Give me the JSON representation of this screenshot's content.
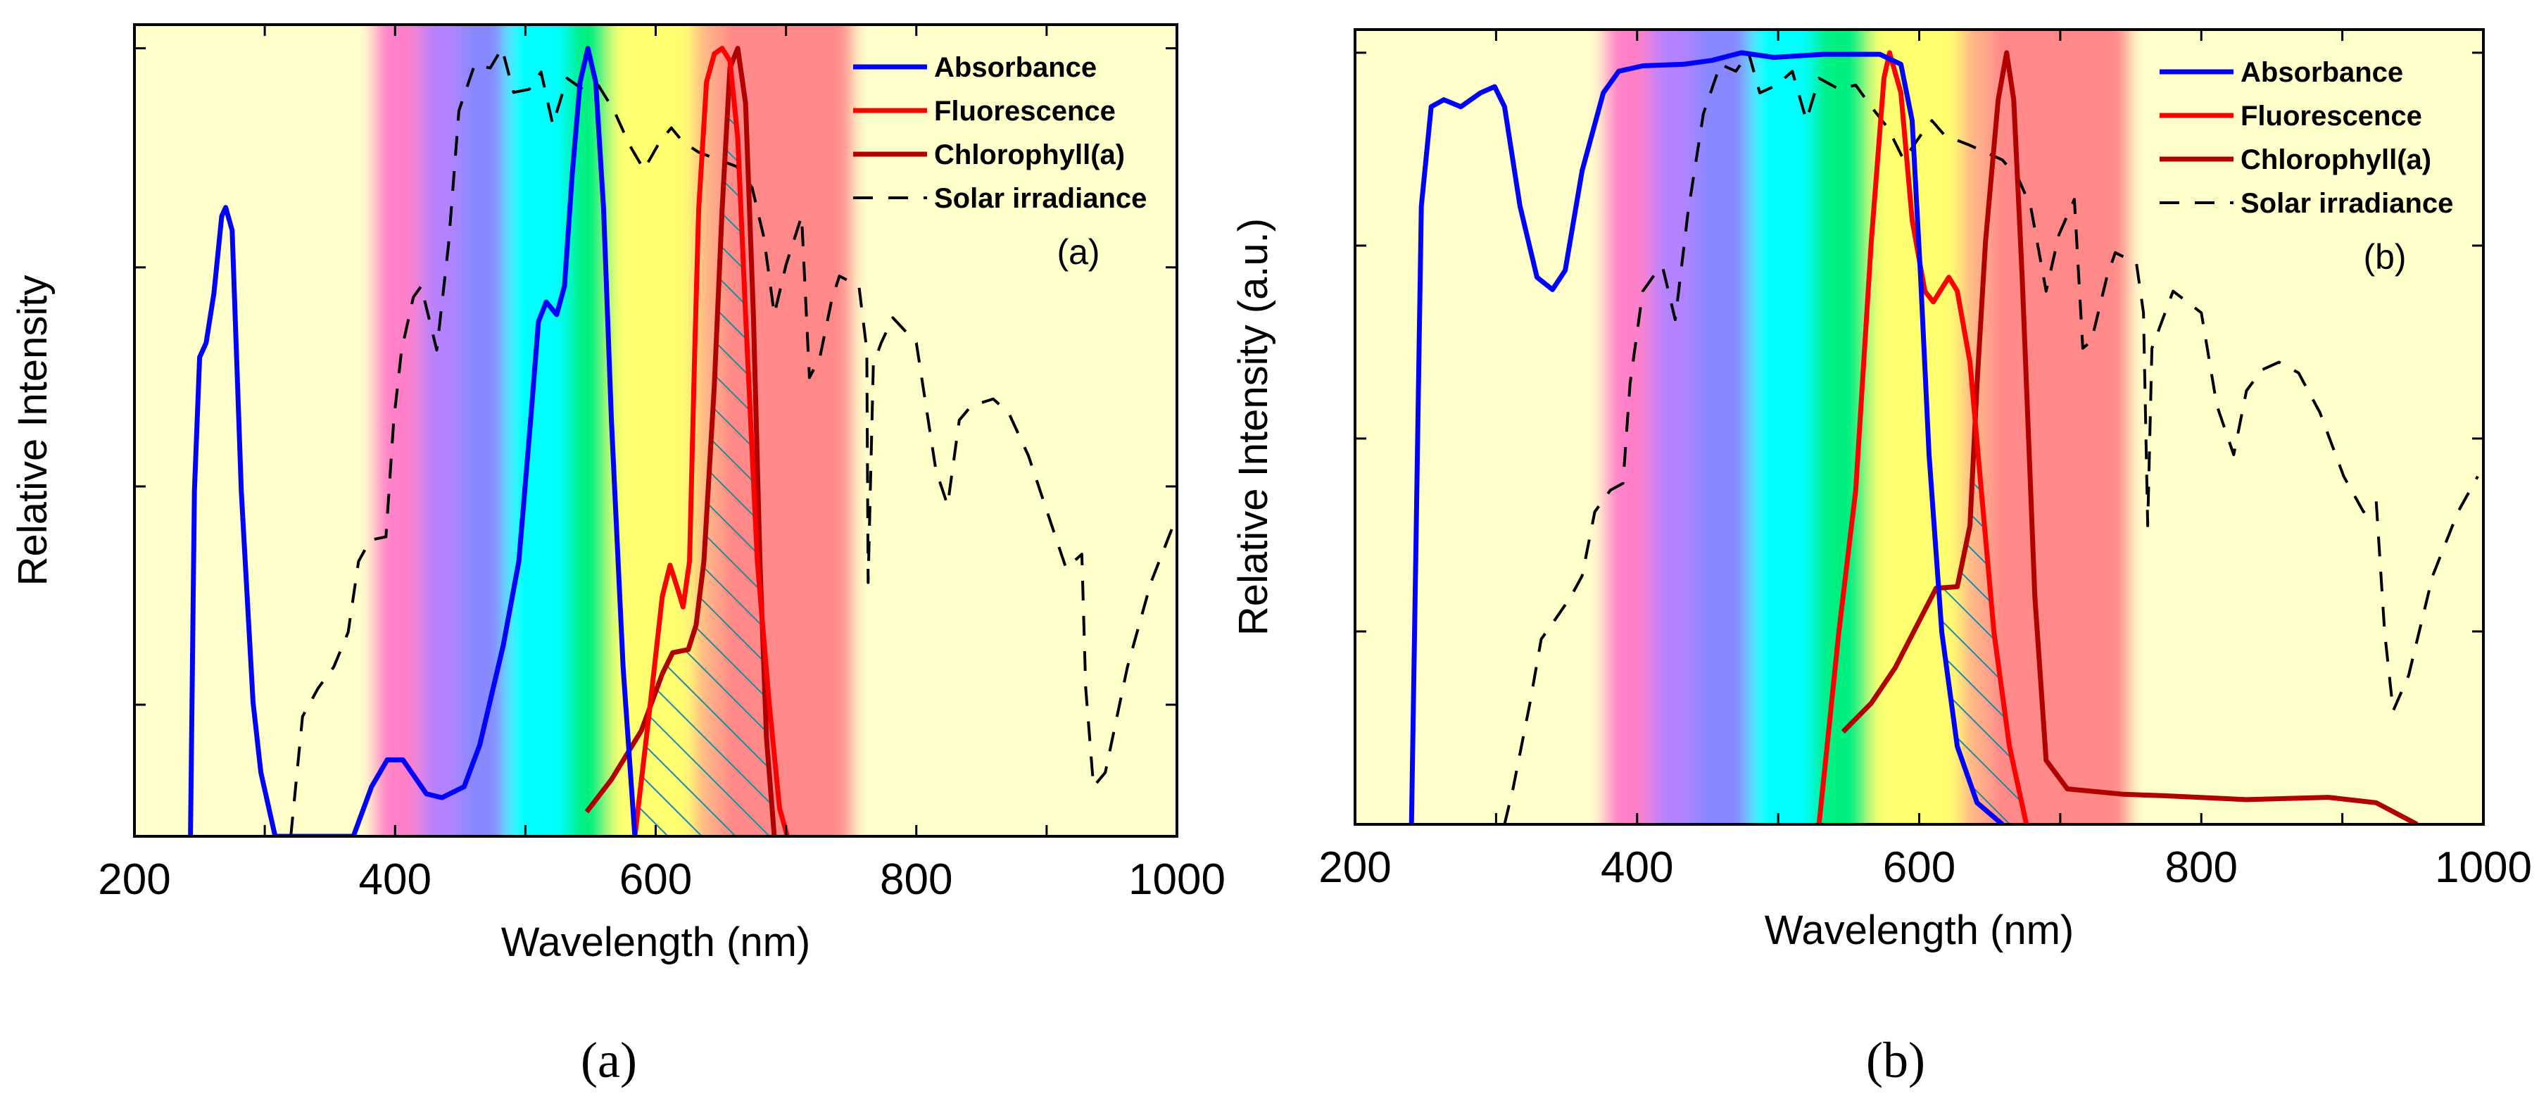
{
  "chart_data": [
    {
      "type": "line",
      "caption": "(a)",
      "panel_tag": "(a)",
      "xlabel": "Wavelength (nm)",
      "ylabel": "Relative Intensity",
      "xlim": [
        200,
        1000
      ],
      "ylim": [
        0,
        1.03
      ],
      "xticks": [
        200,
        400,
        600,
        800,
        1000
      ],
      "xtick_labels": [
        "200",
        "400",
        "600",
        "800",
        "1000"
      ],
      "xminor": [
        300,
        500,
        700,
        900
      ],
      "yticks": [
        0.167,
        0.444,
        0.722,
        1.0
      ],
      "legend_position": "top-right",
      "background": "#ffffcc",
      "spectrum_bands": [
        {
          "from": 385,
          "to": 420,
          "color": "#ff80c8"
        },
        {
          "from": 420,
          "to": 450,
          "color": "#b482ff"
        },
        {
          "from": 450,
          "to": 485,
          "color": "#8888ff"
        },
        {
          "from": 485,
          "to": 533,
          "color": "#00ffff"
        },
        {
          "from": 533,
          "to": 565,
          "color": "#00f080"
        },
        {
          "from": 565,
          "to": 630,
          "color": "#ffff70"
        },
        {
          "from": 630,
          "to": 650,
          "color": "#ffb088"
        },
        {
          "from": 650,
          "to": 750,
          "color": "#ff8888"
        }
      ],
      "hatch": {
        "from": 584,
        "to": 690,
        "color": "#1f8a9a"
      },
      "series": [
        {
          "name": "Absorbance",
          "color": "#0000ff",
          "dash": false,
          "x": [
            243,
            246,
            250,
            255,
            261,
            267,
            270,
            275,
            282,
            291,
            297,
            308,
            368,
            382,
            394,
            406,
            424,
            436,
            453,
            465,
            483,
            495,
            504,
            510,
            516,
            524,
            530,
            536,
            542,
            548,
            554,
            560,
            566,
            575,
            584
          ],
          "y": [
            0,
            0.438,
            0.608,
            0.626,
            0.689,
            0.787,
            0.798,
            0.769,
            0.438,
            0.17,
            0.081,
            0,
            0,
            0.063,
            0.097,
            0.097,
            0.054,
            0.049,
            0.063,
            0.116,
            0.242,
            0.349,
            0.528,
            0.653,
            0.678,
            0.662,
            0.698,
            0.841,
            0.957,
            1.0,
            0.957,
            0.796,
            0.528,
            0.215,
            0
          ]
        },
        {
          "name": "Fluorescence",
          "color": "#ff0000",
          "dash": false,
          "x": [
            584,
            596,
            605,
            611,
            617,
            621,
            626,
            630,
            633,
            639,
            645,
            651,
            657,
            663,
            669,
            678,
            687,
            695,
            701
          ],
          "y": [
            0,
            0.17,
            0.304,
            0.344,
            0.313,
            0.291,
            0.349,
            0.617,
            0.796,
            0.957,
            0.993,
            1.0,
            0.984,
            0.886,
            0.662,
            0.349,
            0.17,
            0.036,
            0
          ]
        },
        {
          "name": "Chlorophyll(a)",
          "color": "#b00000",
          "dash": false,
          "x": [
            547,
            566,
            589,
            605,
            613,
            625,
            631,
            637,
            645,
            651,
            657,
            663,
            669,
            675,
            680,
            685,
            691
          ],
          "y": [
            0.031,
            0.072,
            0.134,
            0.206,
            0.233,
            0.237,
            0.268,
            0.349,
            0.572,
            0.796,
            0.975,
            1.0,
            0.93,
            0.662,
            0.349,
            0.125,
            0
          ]
        },
        {
          "name": "Solar irradiance",
          "color": "#000000",
          "dash": true,
          "x": [
            320,
            329,
            341,
            353,
            364,
            372,
            381,
            393,
            399,
            405,
            414,
            420,
            432,
            441,
            449,
            461,
            473,
            482,
            491,
            503,
            512,
            521,
            532,
            544,
            556,
            568,
            580,
            591,
            603,
            612,
            621,
            633,
            662,
            674,
            683,
            691,
            700,
            712,
            718,
            726,
            735,
            741,
            756,
            762,
            763,
            767,
            773,
            782,
            800,
            815,
            824,
            833,
            842,
            859,
            871,
            886,
            904,
            915,
            927,
            930,
            936,
            945,
            962,
            980,
            998
          ],
          "y": [
            0,
            0.152,
            0.188,
            0.215,
            0.259,
            0.349,
            0.376,
            0.38,
            0.528,
            0.617,
            0.684,
            0.698,
            0.617,
            0.751,
            0.921,
            0.979,
            0.975,
            1.0,
            0.944,
            0.948,
            0.97,
            0.903,
            0.962,
            0.948,
            0.953,
            0.921,
            0.877,
            0.846,
            0.881,
            0.899,
            0.881,
            0.868,
            0.85,
            0.823,
            0.76,
            0.662,
            0.725,
            0.787,
            0.582,
            0.608,
            0.68,
            0.711,
            0.698,
            0.617,
            0.322,
            0.599,
            0.626,
            0.658,
            0.626,
            0.465,
            0.42,
            0.528,
            0.546,
            0.555,
            0.537,
            0.483,
            0.394,
            0.34,
            0.358,
            0.188,
            0.063,
            0.081,
            0.215,
            0.322,
            0.398
          ]
        }
      ]
    },
    {
      "type": "line",
      "caption": "(b)",
      "panel_tag": "(b)",
      "xlabel": "Wavelength (nm)",
      "ylabel": "Relative Intensity (a.u.)",
      "xlim": [
        200,
        1000
      ],
      "ylim": [
        0,
        1.03
      ],
      "xticks": [
        200,
        400,
        600,
        800,
        1000
      ],
      "xtick_labels": [
        "200",
        "400",
        "600",
        "800",
        "1000"
      ],
      "xminor": [
        300,
        500,
        700,
        900
      ],
      "yticks": [
        0.25,
        0.5,
        0.75,
        1.0
      ],
      "legend_position": "top-right",
      "background": "#ffffcc",
      "spectrum_bands": [
        {
          "from": 378,
          "to": 410,
          "color": "#ff80c8"
        },
        {
          "from": 410,
          "to": 440,
          "color": "#b482ff"
        },
        {
          "from": 440,
          "to": 480,
          "color": "#8888ff"
        },
        {
          "from": 480,
          "to": 525,
          "color": "#00ffff"
        },
        {
          "from": 525,
          "to": 565,
          "color": "#00f080"
        },
        {
          "from": 565,
          "to": 630,
          "color": "#ffff70"
        },
        {
          "from": 630,
          "to": 650,
          "color": "#ffb088"
        },
        {
          "from": 650,
          "to": 748,
          "color": "#ff8888"
        }
      ],
      "hatch": {
        "from": 614,
        "to": 672,
        "color": "#1f8a9a"
      },
      "series": [
        {
          "name": "Absorbance",
          "color": "#0000ff",
          "dash": false,
          "x": [
            240,
            243,
            247,
            254,
            263,
            275,
            289,
            299,
            306,
            317,
            329,
            340,
            349,
            361,
            376,
            387,
            404,
            433,
            453,
            474,
            497,
            532,
            572,
            587,
            595,
            601,
            607,
            616,
            627,
            641,
            659
          ],
          "y": [
            0,
            0.341,
            0.801,
            0.93,
            0.939,
            0.93,
            0.948,
            0.956,
            0.93,
            0.801,
            0.709,
            0.693,
            0.718,
            0.847,
            0.948,
            0.976,
            0.983,
            0.985,
            0.99,
            1.0,
            0.994,
            0.998,
            0.998,
            0.985,
            0.912,
            0.709,
            0.479,
            0.249,
            0.101,
            0.028,
            0
          ]
        },
        {
          "name": "Fluorescence",
          "color": "#ff0000",
          "dash": false,
          "x": [
            529,
            543,
            555,
            566,
            575,
            579,
            587,
            595,
            604,
            610,
            621,
            627,
            636,
            644,
            653,
            664,
            676
          ],
          "y": [
            0,
            0.249,
            0.433,
            0.755,
            0.967,
            1.0,
            0.948,
            0.783,
            0.691,
            0.677,
            0.709,
            0.691,
            0.599,
            0.433,
            0.249,
            0.101,
            0
          ]
        },
        {
          "name": "Chlorophyll(a)",
          "color": "#b00000",
          "dash": false,
          "x": [
            546,
            566,
            583,
            601,
            612,
            627,
            636,
            641,
            647,
            656,
            662,
            667,
            673,
            682,
            690,
            705,
            745,
            774,
            832,
            890,
            924,
            953
          ],
          "y": [
            0.12,
            0.157,
            0.203,
            0.267,
            0.306,
            0.308,
            0.387,
            0.571,
            0.755,
            0.939,
            1.0,
            0.939,
            0.709,
            0.295,
            0.083,
            0.046,
            0.039,
            0.037,
            0.032,
            0.035,
            0.028,
            0
          ]
        },
        {
          "name": "Solar irradiance",
          "color": "#000000",
          "dash": true,
          "x": [
            306,
            312,
            324,
            332,
            341,
            353,
            361,
            370,
            381,
            390,
            395,
            404,
            413,
            418,
            427,
            436,
            447,
            459,
            470,
            479,
            487,
            499,
            510,
            520,
            529,
            543,
            555,
            566,
            578,
            589,
            601,
            609,
            618,
            636,
            659,
            670,
            679,
            690,
            699,
            710,
            716,
            722,
            733,
            739,
            754,
            759,
            762,
            765,
            780,
            800,
            811,
            823,
            832,
            843,
            855,
            869,
            884,
            901,
            915,
            924,
            930,
            936,
            947,
            964,
            982,
            996
          ],
          "y": [
            0,
            0.046,
            0.157,
            0.24,
            0.263,
            0.295,
            0.322,
            0.405,
            0.433,
            0.442,
            0.571,
            0.691,
            0.714,
            0.723,
            0.654,
            0.792,
            0.921,
            0.985,
            0.976,
            1.0,
            0.948,
            0.958,
            0.976,
            0.912,
            0.967,
            0.953,
            0.958,
            0.93,
            0.902,
            0.861,
            0.893,
            0.912,
            0.893,
            0.88,
            0.861,
            0.838,
            0.801,
            0.691,
            0.764,
            0.81,
            0.617,
            0.626,
            0.709,
            0.741,
            0.727,
            0.663,
            0.387,
            0.617,
            0.691,
            0.663,
            0.543,
            0.479,
            0.562,
            0.589,
            0.599,
            0.585,
            0.534,
            0.451,
            0.405,
            0.419,
            0.249,
            0.147,
            0.193,
            0.322,
            0.405,
            0.451
          ]
        }
      ]
    }
  ]
}
